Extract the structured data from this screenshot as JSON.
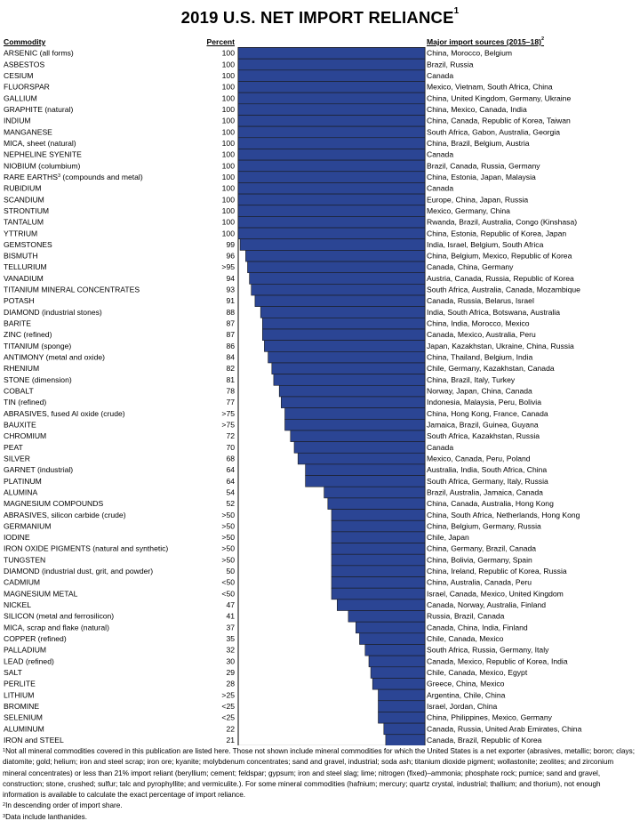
{
  "title": "2019 U.S. NET IMPORT RELIANCE",
  "title_note": "1",
  "headers": {
    "commodity": "Commodity",
    "percent": "Percent",
    "sources": "Major import sources (2015–18)",
    "sources_note": "2"
  },
  "colors": {
    "bar": "#2b4594",
    "bar_stroke": "#1a1a1a",
    "frame": "#000000"
  },
  "chart_data": {
    "type": "bar",
    "orientation": "horizontal",
    "xlim": [
      0,
      100
    ],
    "categories": [
      "ARSENIC (all forms)",
      "ASBESTOS",
      "CESIUM",
      "FLUORSPAR",
      "GALLIUM",
      "GRAPHITE (natural)",
      "INDIUM",
      "MANGANESE",
      "MICA, sheet (natural)",
      "NEPHELINE SYENITE",
      "NIOBIUM (columbium)",
      "RARE EARTHS",
      "RUBIDIUM",
      "SCANDIUM",
      "STRONTIUM",
      "TANTALUM",
      "YTTRIUM",
      "GEMSTONES",
      "BISMUTH",
      "TELLURIUM",
      "VANADIUM",
      "TITANIUM MINERAL CONCENTRATES",
      "POTASH",
      "DIAMOND (industrial stones)",
      "BARITE",
      "ZINC (refined)",
      "TITANIUM (sponge)",
      "ANTIMONY (metal and oxide)",
      "RHENIUM",
      "STONE (dimension)",
      "COBALT",
      "TIN (refined)",
      "ABRASIVES, fused Al oxide (crude)",
      "BAUXITE",
      "CHROMIUM",
      "PEAT",
      "SILVER",
      "GARNET (industrial)",
      "PLATINUM",
      "ALUMINA",
      "MAGNESIUM COMPOUNDS",
      "ABRASIVES, silicon carbide (crude)",
      "GERMANIUM",
      "IODINE",
      "IRON OXIDE PIGMENTS (natural and synthetic)",
      "TUNGSTEN",
      "DIAMOND (industrial dust, grit, and powder)",
      "CADMIUM",
      "MAGNESIUM METAL",
      "NICKEL",
      "SILICON (metal and ferrosilicon)",
      "MICA, scrap and flake (natural)",
      "COPPER (refined)",
      "PALLADIUM",
      "LEAD (refined)",
      "SALT",
      "PERLITE",
      "LITHIUM",
      "BROMINE",
      "SELENIUM",
      "ALUMINUM",
      "IRON and STEEL"
    ],
    "category_notes": {
      "11": {
        "note": "3",
        "suffix": " (compounds and metal)"
      }
    },
    "labels": [
      "100",
      "100",
      "100",
      "100",
      "100",
      "100",
      "100",
      "100",
      "100",
      "100",
      "100",
      "100",
      "100",
      "100",
      "100",
      "100",
      "100",
      "99",
      "96",
      ">95",
      "94",
      "93",
      "91",
      "88",
      "87",
      "87",
      "86",
      "84",
      "82",
      "81",
      "78",
      "77",
      ">75",
      ">75",
      "72",
      "70",
      "68",
      "64",
      "64",
      "54",
      "52",
      ">50",
      ">50",
      ">50",
      ">50",
      ">50",
      "50",
      "<50",
      "<50",
      "47",
      "41",
      "37",
      "35",
      "32",
      "30",
      "29",
      "28",
      ">25",
      "<25",
      "<25",
      "22",
      "21"
    ],
    "values": [
      100,
      100,
      100,
      100,
      100,
      100,
      100,
      100,
      100,
      100,
      100,
      100,
      100,
      100,
      100,
      100,
      100,
      99,
      96,
      95,
      94,
      93,
      91,
      88,
      87,
      87,
      86,
      84,
      82,
      81,
      78,
      77,
      75,
      75,
      72,
      70,
      68,
      64,
      64,
      54,
      52,
      50,
      50,
      50,
      50,
      50,
      50,
      50,
      50,
      47,
      41,
      37,
      35,
      32,
      30,
      29,
      28,
      25,
      25,
      25,
      22,
      21
    ],
    "sources": [
      "China, Morocco, Belgium",
      "Brazil, Russia",
      "Canada",
      "Mexico, Vietnam, South Africa, China",
      "China, United Kingdom, Germany, Ukraine",
      "China, Mexico, Canada, India",
      "China, Canada, Republic of Korea, Taiwan",
      "South Africa, Gabon, Australia, Georgia",
      "China, Brazil, Belgium, Austria",
      "Canada",
      "Brazil, Canada, Russia, Germany",
      "China, Estonia, Japan, Malaysia",
      "Canada",
      "Europe, China, Japan, Russia",
      "Mexico, Germany, China",
      "Rwanda, Brazil, Australia, Congo (Kinshasa)",
      "China, Estonia, Republic of Korea, Japan",
      "India, Israel, Belgium, South Africa",
      "China, Belgium, Mexico, Republic of Korea",
      "Canada, China, Germany",
      "Austria, Canada, Russia, Republic of Korea",
      "South Africa, Australia, Canada, Mozambique",
      "Canada, Russia, Belarus, Israel",
      "India, South Africa, Botswana, Australia",
      "China, India, Morocco, Mexico",
      "Canada, Mexico, Australia, Peru",
      "Japan, Kazakhstan, Ukraine, China, Russia",
      "China, Thailand, Belgium, India",
      "Chile, Germany, Kazakhstan, Canada",
      "China, Brazil, Italy, Turkey",
      "Norway, Japan, China, Canada",
      "Indonesia, Malaysia, Peru, Bolivia",
      "China, Hong Kong, France, Canada",
      "Jamaica, Brazil, Guinea, Guyana",
      "South Africa, Kazakhstan, Russia",
      "Canada",
      "Mexico, Canada, Peru, Poland",
      "Australia, India, South Africa, China",
      "South Africa, Germany, Italy, Russia",
      "Brazil, Australia, Jamaica, Canada",
      "China, Canada, Australia, Hong Kong",
      "China, South Africa, Netherlands, Hong Kong",
      "China, Belgium, Germany, Russia",
      "Chile, Japan",
      "China, Germany, Brazil, Canada",
      "China, Bolivia, Germany, Spain",
      "China, Ireland, Republic of Korea, Russia",
      "China, Australia, Canada, Peru",
      "Israel, Canada, Mexico, United Kingdom",
      "Canada, Norway, Australia, Finland",
      "Russia, Brazil, Canada",
      "Canada, China, India, Finland",
      "Chile, Canada, Mexico",
      "South Africa, Russia, Germany, Italy",
      "Canada, Mexico, Republic of Korea, India",
      "Chile, Canada, Mexico, Egypt",
      "Greece, China, Mexico",
      "Argentina, Chile, China",
      "Israel, Jordan, China",
      "China, Philippines, Mexico, Germany",
      "Canada, Russia, United Arab Emirates, China",
      "Canada, Brazil, Republic of Korea"
    ]
  },
  "footnotes": [
    {
      "mark": "1",
      "text": "Not all mineral commodities covered in this publication are listed here. Those not shown include mineral commodities for which the United States is a net exporter (abrasives, metallic; boron; clays; diatomite; gold; helium; iron and steel scrap; iron ore; kyanite; molybdenum concentrates; sand and gravel, industrial; soda ash; titanium dioxide pigment; wollastonite; zeolites; and zirconium mineral concentrates) or less than 21% import reliant (beryllium; cement; feldspar; gypsum; iron and steel slag; lime; nitrogen (fixed)–ammonia; phosphate rock; pumice; sand and gravel, construction; stone, crushed; sulfur; talc and pyrophyllite; and vermiculite.). For some mineral commodities (hafnium; mercury; quartz crystal, industrial; thallium; and thorium), not enough information is available to calculate the exact percentage of import reliance."
    },
    {
      "mark": "2",
      "text": "In descending order of import share."
    },
    {
      "mark": "3",
      "text": "Data include lanthanides."
    }
  ]
}
